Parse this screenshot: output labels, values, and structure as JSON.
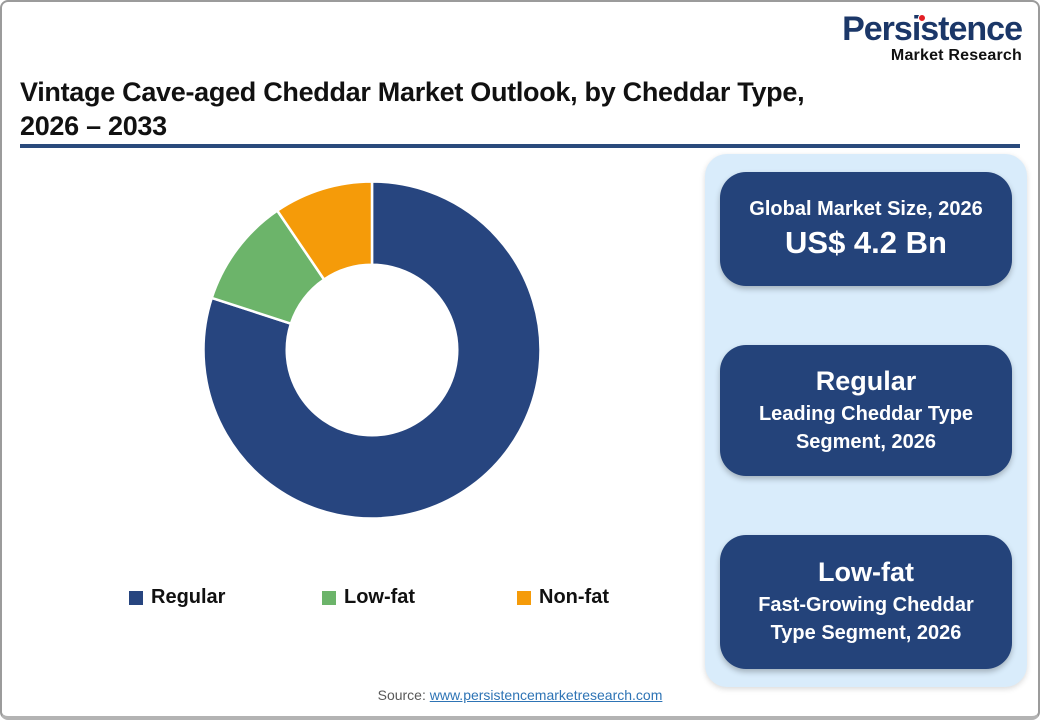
{
  "logo": {
    "brand": "Persistence",
    "tagline": "Market Research",
    "brand_color": "#1B3768",
    "accent_color": "#E31E24"
  },
  "header": {
    "title": "Vintage Cave-aged Cheddar Market Outlook, by Cheddar Type,\n2026 – 2033",
    "underline_color": "#2A4A7C"
  },
  "chart_data": {
    "type": "pie",
    "subtype": "donut",
    "title": "Vintage Cave-aged Cheddar Market Outlook, by Cheddar Type, 2026 – 2033",
    "categories": [
      "Regular",
      "Low-fat",
      "Non-fat"
    ],
    "values": [
      80,
      10.5,
      9.5
    ],
    "colors": [
      "#27457F",
      "#6CB46A",
      "#F59B09"
    ],
    "start_angle_deg": 0,
    "inner_radius_ratio": 0.5,
    "segment_gap_color": "#ffffff",
    "legend_position": "bottom"
  },
  "side_panel": {
    "background": "#D9ECFB",
    "card_color": "#24437A",
    "cards": [
      {
        "title": "Global Market Size, 2026",
        "value": "US$ 4.2 Bn"
      },
      {
        "heading": "Regular",
        "subtitle": "Leading Cheddar Type\nSegment, 2026"
      },
      {
        "heading": "Low-fat",
        "subtitle": "Fast-Growing Cheddar\nType Segment, 2026"
      }
    ]
  },
  "footer": {
    "source_label": "Source:",
    "source_link": "www.persistencemarketresearch.com"
  }
}
